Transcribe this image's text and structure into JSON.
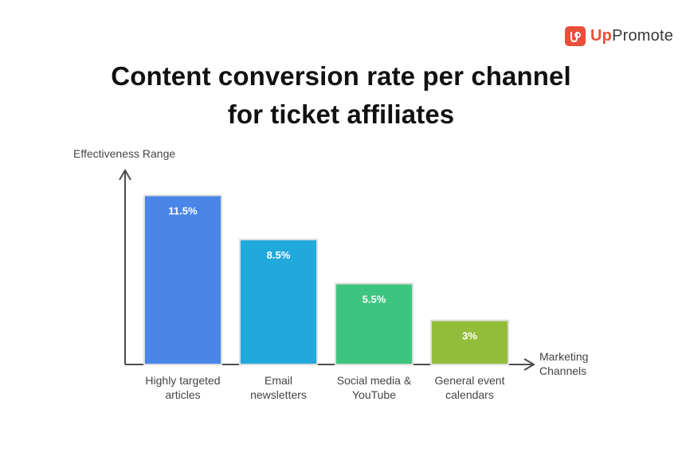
{
  "brand": {
    "name_accent": "Up",
    "name_rest": "Promote",
    "icon": "upromote-logo-icon"
  },
  "colors": {
    "axis": "#4d4d4d",
    "brand": "#ea4f3b",
    "label": "#444444",
    "bars": [
      "#4a86e8",
      "#22a9dc",
      "#3dc47e",
      "#92bd3a"
    ],
    "bar_border": "#dddddd"
  },
  "chart_data": {
    "type": "bar",
    "title": "Content conversion rate per channel for ticket affiliates",
    "title_lines": [
      "Content conversion rate per channel",
      "for ticket affiliates"
    ],
    "ylabel": "Effectiveness Range",
    "xlabel_lines": [
      "Marketing",
      "Channels"
    ],
    "categories": [
      [
        "Highly targeted",
        "articles"
      ],
      [
        "Email",
        "newsletters"
      ],
      [
        "Social media &",
        "YouTube"
      ],
      [
        "General event",
        "calendars"
      ]
    ],
    "values": [
      11.5,
      8.5,
      5.5,
      3
    ],
    "value_labels": [
      "11.5%",
      "8.5%",
      "5.5%",
      "3%"
    ],
    "unit": "%",
    "ylim": [
      0,
      13.1
    ],
    "grid": false,
    "legend": "none"
  }
}
